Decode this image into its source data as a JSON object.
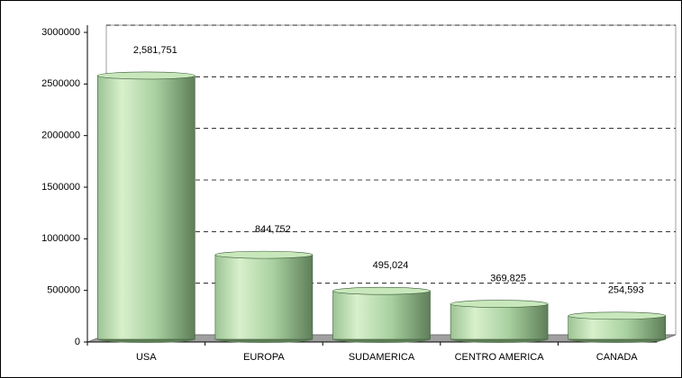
{
  "chart_data": {
    "type": "bar",
    "categories": [
      "USA",
      "EUROPA",
      "SUDAMERICA",
      "CENTRO AMERICA",
      "CANADA"
    ],
    "values": [
      2581751,
      844752,
      495024,
      369825,
      254593
    ],
    "value_labels": [
      "2,581,751",
      "844,752",
      "495,024",
      "369,825",
      "254,593"
    ],
    "color": "#a8d8a0",
    "ylim": [
      0,
      3000000
    ],
    "yticks": [
      0,
      500000,
      1000000,
      1500000,
      2000000,
      2500000,
      3000000
    ],
    "grid": true
  }
}
